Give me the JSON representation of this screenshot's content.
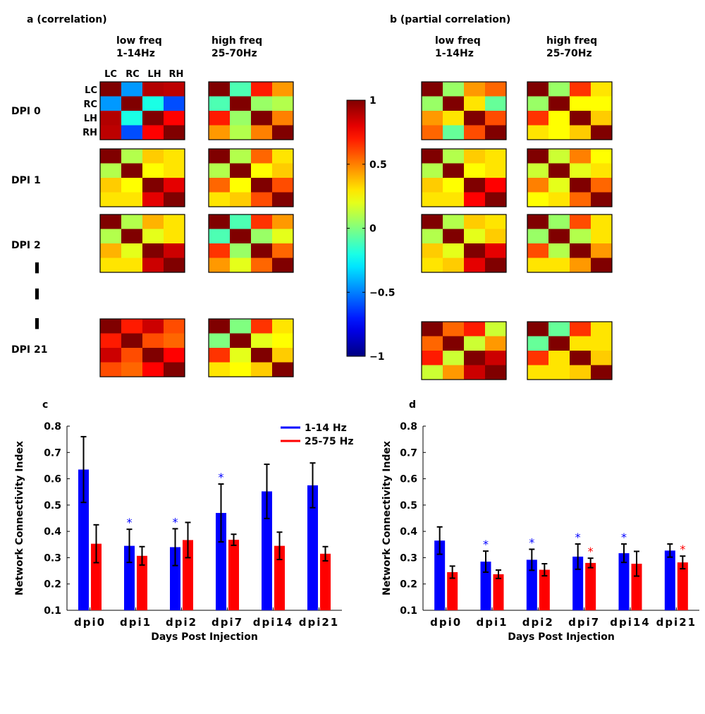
{
  "panels": {
    "a_title": "a  (correlation)",
    "b_title": "b  (partial correlation)",
    "c_label": "c",
    "d_label": "d"
  },
  "heatmap_headers": {
    "low_freq": "low freq",
    "low_range": "1-14Hz",
    "high_freq": "high freq",
    "high_range": "25-70Hz"
  },
  "channels": [
    "LC",
    "RC",
    "LH",
    "RH"
  ],
  "row_labels": [
    "DPI 0",
    "DPI 1",
    "DPI 2",
    "DPI 21"
  ],
  "ellipsis": [
    "▌",
    "▌",
    "▌"
  ],
  "colorbar": {
    "ticks": [
      {
        "value": 1,
        "label": "1"
      },
      {
        "value": 0.5,
        "label": "0.5"
      },
      {
        "value": 0,
        "label": "0"
      },
      {
        "value": -0.5,
        "label": "−0.5"
      },
      {
        "value": -1,
        "label": "−1"
      }
    ]
  },
  "chart_data": [
    {
      "type": "heatmap",
      "title": "a  (correlation)",
      "rows": [
        "DPI 0",
        "DPI 1",
        "DPI 2",
        "DPI 21"
      ],
      "columns": [
        "low freq 1-14Hz",
        "high freq 25-70Hz"
      ],
      "channels": [
        "LC",
        "RC",
        "LH",
        "RH"
      ],
      "range": [
        -1,
        1
      ],
      "matrices": [
        [
          [
            [
              1,
              -0.45,
              0.9,
              0.88
            ],
            [
              -0.45,
              1,
              -0.2,
              -0.6
            ],
            [
              0.9,
              -0.2,
              1,
              0.75
            ],
            [
              0.88,
              -0.6,
              0.75,
              1
            ]
          ],
          [
            [
              1,
              -0.1,
              0.7,
              0.45
            ],
            [
              -0.1,
              1,
              0.05,
              0.1
            ],
            [
              0.7,
              0.05,
              1,
              0.5
            ],
            [
              0.45,
              0.1,
              0.5,
              1
            ]
          ]
        ],
        [
          [
            [
              1,
              0.1,
              0.35,
              0.3
            ],
            [
              0.1,
              1,
              0.25,
              0.3
            ],
            [
              0.35,
              0.25,
              1,
              0.8
            ],
            [
              0.3,
              0.3,
              0.8,
              1
            ]
          ],
          [
            [
              1,
              0.1,
              0.55,
              0.3
            ],
            [
              0.1,
              1,
              0.25,
              0.35
            ],
            [
              0.55,
              0.25,
              1,
              0.6
            ],
            [
              0.3,
              0.35,
              0.6,
              1
            ]
          ]
        ],
        [
          [
            [
              1,
              0.1,
              0.4,
              0.3
            ],
            [
              0.1,
              1,
              0.2,
              0.3
            ],
            [
              0.4,
              0.2,
              1,
              0.85
            ],
            [
              0.3,
              0.3,
              0.85,
              1
            ]
          ],
          [
            [
              1,
              -0.1,
              0.65,
              0.45
            ],
            [
              -0.1,
              1,
              0.05,
              0.2
            ],
            [
              0.65,
              0.05,
              1,
              0.55
            ],
            [
              0.45,
              0.2,
              0.55,
              1
            ]
          ]
        ],
        [
          [
            [
              1,
              0.7,
              0.85,
              0.6
            ],
            [
              0.7,
              1,
              0.6,
              0.55
            ],
            [
              0.85,
              0.6,
              1,
              0.75
            ],
            [
              0.6,
              0.55,
              0.75,
              1
            ]
          ],
          [
            [
              1,
              0.0,
              0.65,
              0.3
            ],
            [
              0.0,
              1,
              0.2,
              0.25
            ],
            [
              0.65,
              0.2,
              1,
              0.35
            ],
            [
              0.3,
              0.25,
              0.35,
              1
            ]
          ]
        ]
      ]
    },
    {
      "type": "heatmap",
      "title": "b  (partial correlation)",
      "rows": [
        "DPI 0",
        "DPI 1",
        "DPI 2",
        "DPI 21"
      ],
      "columns": [
        "low freq 1-14Hz",
        "high freq 25-70Hz"
      ],
      "channels": [
        "LC",
        "RC",
        "LH",
        "RH"
      ],
      "range": [
        -1,
        1
      ],
      "matrices": [
        [
          [
            [
              1,
              0.05,
              0.45,
              0.55
            ],
            [
              0.05,
              1,
              0.3,
              -0.05
            ],
            [
              0.45,
              0.3,
              1,
              0.6
            ],
            [
              0.55,
              -0.05,
              0.6,
              1
            ]
          ],
          [
            [
              1,
              0.05,
              0.65,
              0.3
            ],
            [
              0.05,
              1,
              0.25,
              0.25
            ],
            [
              0.65,
              0.25,
              1,
              0.35
            ],
            [
              0.3,
              0.25,
              0.35,
              1
            ]
          ]
        ],
        [
          [
            [
              1,
              0.1,
              0.35,
              0.3
            ],
            [
              0.1,
              1,
              0.25,
              0.3
            ],
            [
              0.35,
              0.25,
              1,
              0.75
            ],
            [
              0.3,
              0.3,
              0.75,
              1
            ]
          ],
          [
            [
              1,
              0.15,
              0.5,
              0.25
            ],
            [
              0.15,
              1,
              0.2,
              0.3
            ],
            [
              0.5,
              0.2,
              1,
              0.55
            ],
            [
              0.25,
              0.3,
              0.55,
              1
            ]
          ]
        ],
        [
          [
            [
              1,
              0.1,
              0.35,
              0.3
            ],
            [
              0.1,
              1,
              0.2,
              0.35
            ],
            [
              0.35,
              0.2,
              1,
              0.8
            ],
            [
              0.3,
              0.35,
              0.8,
              1
            ]
          ],
          [
            [
              1,
              0.05,
              0.6,
              0.3
            ],
            [
              0.05,
              1,
              0.1,
              0.3
            ],
            [
              0.6,
              0.1,
              1,
              0.45
            ],
            [
              0.3,
              0.3,
              0.45,
              1
            ]
          ]
        ],
        [
          [
            [
              1,
              0.55,
              0.7,
              0.15
            ],
            [
              0.55,
              1,
              0.15,
              0.45
            ],
            [
              0.7,
              0.15,
              1,
              0.85
            ],
            [
              0.15,
              0.45,
              0.85,
              1
            ]
          ],
          [
            [
              1,
              -0.05,
              0.65,
              0.3
            ],
            [
              -0.05,
              1,
              0.3,
              0.3
            ],
            [
              0.65,
              0.3,
              1,
              0.35
            ],
            [
              0.3,
              0.3,
              0.35,
              1
            ]
          ]
        ]
      ]
    },
    {
      "type": "bar",
      "panel": "c",
      "categories": [
        "dpi0",
        "dpi1",
        "dpi2",
        "dpi7",
        "dpi14",
        "dpi21"
      ],
      "xlabel": "Days Post Injection",
      "ylabel": "Network Connectivity Index",
      "ylim": [
        0.1,
        0.8
      ],
      "yticks": [
        0.1,
        0.2,
        0.3,
        0.4,
        0.5,
        0.6,
        0.7,
        0.8
      ],
      "legend": "top-right",
      "series": [
        {
          "name": "1-14 Hz",
          "color": "#0000ff",
          "values": [
            0.635,
            0.345,
            0.34,
            0.47,
            0.552,
            0.575
          ],
          "errors": [
            0.125,
            0.063,
            0.07,
            0.11,
            0.103,
            0.085
          ],
          "significant": [
            false,
            true,
            true,
            true,
            false,
            false
          ]
        },
        {
          "name": "25-75 Hz",
          "color": "#ff0000",
          "values": [
            0.353,
            0.307,
            0.367,
            0.368,
            0.345,
            0.315
          ],
          "errors": [
            0.072,
            0.035,
            0.067,
            0.021,
            0.052,
            0.027
          ],
          "significant": [
            false,
            false,
            false,
            false,
            false,
            false
          ]
        }
      ],
      "significance_marker": "*"
    },
    {
      "type": "bar",
      "panel": "d",
      "categories": [
        "dpi0",
        "dpi1",
        "dpi2",
        "dpi7",
        "dpi14",
        "dpi21"
      ],
      "xlabel": "Days Post Injection",
      "ylabel": "Network Connectivity Index",
      "ylim": [
        0.1,
        0.8
      ],
      "yticks": [
        0.1,
        0.2,
        0.3,
        0.4,
        0.5,
        0.6,
        0.7,
        0.8
      ],
      "series": [
        {
          "name": "1-14 Hz",
          "color": "#0000ff",
          "values": [
            0.365,
            0.285,
            0.292,
            0.304,
            0.317,
            0.327
          ],
          "errors": [
            0.052,
            0.04,
            0.04,
            0.048,
            0.035,
            0.025
          ],
          "significant": [
            false,
            true,
            true,
            true,
            true,
            false
          ]
        },
        {
          "name": "25-75 Hz",
          "color": "#ff0000",
          "values": [
            0.245,
            0.237,
            0.254,
            0.28,
            0.277,
            0.282
          ],
          "errors": [
            0.023,
            0.016,
            0.023,
            0.018,
            0.047,
            0.024
          ],
          "significant": [
            false,
            false,
            false,
            true,
            false,
            true
          ]
        }
      ],
      "significance_marker": "*"
    }
  ]
}
